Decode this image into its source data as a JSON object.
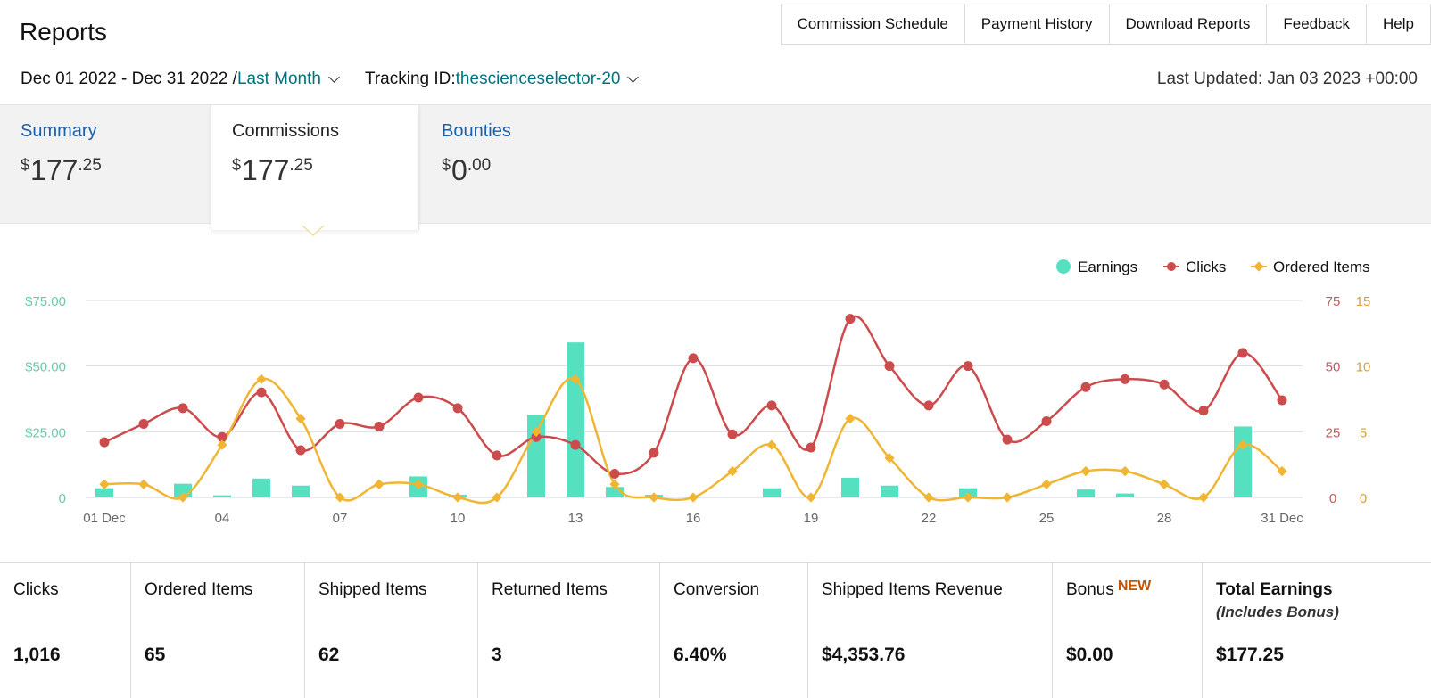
{
  "header": {
    "title": "Reports",
    "nav": [
      "Commission Schedule",
      "Payment History",
      "Download Reports",
      "Feedback",
      "Help"
    ]
  },
  "filters": {
    "date_range": "Dec 01 2022 - Dec 31 2022 / ",
    "period": "Last Month",
    "tracking_label": "Tracking ID: ",
    "tracking_id": "thescienceselector-20",
    "last_updated": "Last Updated: Jan 03 2023 +00:00"
  },
  "tabs": {
    "summary": {
      "label": "Summary",
      "currency": "$",
      "whole": "177",
      "cents": ".25"
    },
    "commissions": {
      "label": "Commissions",
      "currency": "$",
      "whole": "177",
      "cents": ".25"
    },
    "bounties": {
      "label": "Bounties",
      "currency": "$",
      "whole": "0",
      "cents": ".00"
    }
  },
  "colors": {
    "earnings": "#55e0c0",
    "clicks": "#cc4b4c",
    "ordered": "#f0b532",
    "link": "#1a5fa8",
    "teal_link": "#00727f",
    "new_badge": "#c45500"
  },
  "chart_data": {
    "type": "bar+line",
    "legend_position": "top-right",
    "grid": true,
    "x": [
      "01 Dec",
      "02",
      "03",
      "04",
      "05",
      "06",
      "07",
      "08",
      "09",
      "10",
      "11",
      "12",
      "13",
      "14",
      "15",
      "16",
      "17",
      "18",
      "19",
      "20",
      "21",
      "22",
      "23",
      "24",
      "25",
      "26",
      "27",
      "28",
      "29",
      "30",
      "31 Dec"
    ],
    "x_tick_labels": [
      "01 Dec",
      "04",
      "07",
      "10",
      "13",
      "16",
      "19",
      "22",
      "25",
      "28",
      "31 Dec"
    ],
    "y_left": {
      "min": 0,
      "max": 75,
      "ticks": [
        "0",
        "$25.00",
        "$50.00",
        "$75.00"
      ]
    },
    "y_right_clicks": {
      "min": 0,
      "max": 75,
      "ticks": [
        "0",
        "25",
        "50",
        "75"
      ]
    },
    "y_right_ordered": {
      "min": 0,
      "max": 15,
      "ticks": [
        "0",
        "5",
        "10",
        "15"
      ]
    },
    "series": [
      {
        "name": "Earnings",
        "type": "bar",
        "axis": "left",
        "values": [
          3.5,
          0,
          5.2,
          0.8,
          7.2,
          4.5,
          0,
          0,
          8.0,
          1.0,
          0,
          31.5,
          59.0,
          4.0,
          1.0,
          0,
          0,
          3.5,
          0,
          7.5,
          4.5,
          0,
          3.5,
          0,
          0,
          3.0,
          1.5,
          0,
          0,
          27.0,
          0
        ]
      },
      {
        "name": "Clicks",
        "type": "line",
        "axis": "right_clicks",
        "values": [
          21,
          28,
          34,
          23,
          40,
          18,
          28,
          27,
          38,
          34,
          16,
          23,
          20,
          9,
          17,
          53,
          24,
          35,
          19,
          68,
          50,
          35,
          50,
          22,
          29,
          42,
          45,
          43,
          33,
          55,
          37
        ]
      },
      {
        "name": "Ordered Items",
        "type": "line",
        "axis": "right_ordered",
        "values": [
          1,
          1,
          0,
          4,
          9,
          6,
          0,
          1,
          1,
          0,
          0,
          5,
          9,
          1,
          0,
          0,
          2,
          4,
          0,
          6,
          3,
          0,
          0,
          0,
          1,
          2,
          2,
          1,
          0,
          4,
          2
        ]
      }
    ]
  },
  "stats": [
    {
      "label": "Clicks",
      "value": "1,016"
    },
    {
      "label": "Ordered Items",
      "value": "65"
    },
    {
      "label": "Shipped Items",
      "value": "62"
    },
    {
      "label": "Returned Items",
      "value": "3"
    },
    {
      "label": "Conversion",
      "value": "6.40%"
    },
    {
      "label": "Shipped Items Revenue",
      "value": "$4,353.76"
    },
    {
      "label": "Bonus",
      "badge": "NEW",
      "value": "$0.00"
    },
    {
      "label": "Total Earnings",
      "sub": "(Includes Bonus)",
      "value": "$177.25"
    }
  ]
}
